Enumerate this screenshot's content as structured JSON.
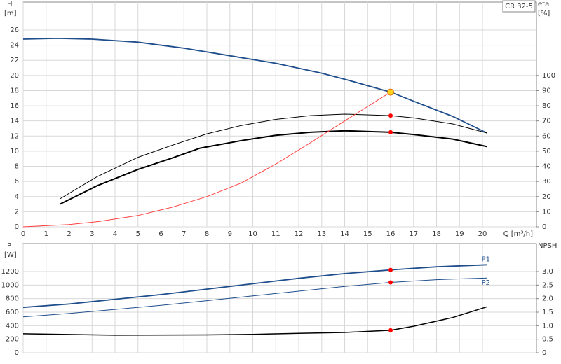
{
  "chart_data": [
    {
      "type": "line",
      "model": "CR 32-5",
      "y_label": "H",
      "y_unit": "[m]",
      "y2_label": "eta",
      "y2_unit": "[%]",
      "x_label": "Q [m³/h]",
      "xlim": [
        0,
        22.35
      ],
      "xticks": [
        0,
        1,
        2,
        3,
        4,
        5,
        6,
        7,
        8,
        9,
        10,
        11,
        12,
        13,
        14,
        15,
        16,
        17,
        18,
        19,
        20
      ],
      "ylim": [
        0,
        29.7
      ],
      "yticks": [
        0,
        2,
        4,
        6,
        8,
        10,
        12,
        14,
        16,
        18,
        20,
        22,
        24,
        26
      ],
      "y2lim": [
        0,
        148.5
      ],
      "y2ticks": [
        0,
        10,
        20,
        30,
        40,
        50,
        60,
        70,
        80,
        90,
        100
      ],
      "grid": true,
      "show_xtick_labels": true,
      "series": [
        {
          "style": "line",
          "color": "#1f4e8c",
          "linewidth": 1.8,
          "x": [
            0,
            1.5,
            3,
            5,
            7,
            9,
            11,
            13,
            14,
            16,
            17,
            18.7,
            20.2
          ],
          "values": [
            24.8,
            24.9,
            24.8,
            24.4,
            23.6,
            22.6,
            21.6,
            20.3,
            19.5,
            17.8,
            16.6,
            14.6,
            12.4
          ]
        },
        {
          "style": "line",
          "color": "#000000",
          "linewidth": 1,
          "axis": "y2",
          "x": [
            1.6,
            3.2,
            5,
            6.5,
            8,
            9.5,
            11,
            12.5,
            14,
            16,
            17,
            18.7,
            20.2
          ],
          "values": [
            18.5,
            33,
            46,
            54,
            61.5,
            67,
            71,
            73.5,
            74.5,
            73.5,
            72,
            68,
            62
          ]
        },
        {
          "style": "line",
          "color": "#000000",
          "linewidth": 2,
          "axis": "y2",
          "x": [
            1.6,
            3.2,
            5,
            6.5,
            7.7,
            9.5,
            11,
            12.5,
            14,
            16,
            17,
            18.7,
            20.2
          ],
          "values": [
            15,
            27,
            38,
            45.5,
            52,
            57,
            60.5,
            62.5,
            63.5,
            62.5,
            61,
            58,
            53
          ]
        },
        {
          "style": "line",
          "color": "#ff4040",
          "linewidth": 1,
          "x": [
            0,
            2,
            3.3,
            5,
            6.5,
            8,
            9.5,
            11,
            12.5,
            14,
            16
          ],
          "values": [
            0,
            0.3,
            0.7,
            1.5,
            2.6,
            4,
            5.8,
            8.3,
            11.1,
            14,
            17.8
          ]
        },
        {
          "style": "point",
          "color": "#ff0000",
          "axis": "y2",
          "x": [
            16,
            16
          ],
          "values": [
            73.5,
            62.5
          ]
        },
        {
          "style": "point",
          "color": "#ffd21f",
          "x": [
            16
          ],
          "values": [
            17.8
          ]
        }
      ]
    },
    {
      "type": "line",
      "y_label": "P",
      "y_unit": "[W]",
      "y2_label": "NPSH",
      "xlim": [
        0,
        22.35
      ],
      "xticks": [
        0,
        1,
        2,
        3,
        4,
        5,
        6,
        7,
        8,
        9,
        10,
        11,
        12,
        13,
        14,
        15,
        16,
        17,
        18,
        19,
        20
      ],
      "ylim": [
        0,
        1614
      ],
      "yticks": [
        0,
        200,
        400,
        600,
        800,
        1000,
        1200
      ],
      "y2lim": [
        0,
        4.035
      ],
      "y2ticks": [
        {
          "value": 0,
          "label": "0"
        },
        0.5,
        {
          "value": 1,
          "label": "1.0"
        },
        1.5,
        {
          "value": 2,
          "label": "2.0"
        },
        2.5,
        {
          "value": 3,
          "label": "3.0"
        }
      ],
      "grid": true,
      "show_xtick_labels": false,
      "series": [
        {
          "style": "line",
          "name": "P1",
          "color": "#1f4e8c",
          "linewidth": 1.8,
          "x": [
            0,
            2,
            4,
            6,
            8,
            10,
            12,
            14,
            16,
            18,
            20.2
          ],
          "values": [
            670,
            720,
            790,
            860,
            940,
            1020,
            1100,
            1170,
            1225,
            1270,
            1300
          ]
        },
        {
          "style": "line",
          "name": "P2",
          "color": "#1f4e8c",
          "linewidth": 1,
          "x": [
            0,
            2,
            4,
            6,
            8,
            10,
            12,
            14,
            16,
            18,
            20.2
          ],
          "values": [
            530,
            580,
            640,
            700,
            770,
            840,
            910,
            980,
            1040,
            1080,
            1105
          ]
        },
        {
          "style": "line",
          "color": "#000000",
          "linewidth": 1.5,
          "axis": "y2",
          "x": [
            0,
            4,
            8,
            10,
            12,
            14,
            16,
            17,
            18.7,
            20.2
          ],
          "values": [
            0.7,
            0.65,
            0.66,
            0.68,
            0.72,
            0.75,
            0.83,
            0.98,
            1.3,
            1.7
          ]
        },
        {
          "style": "point",
          "color": "#ff0000",
          "x": [
            16,
            16
          ],
          "values": [
            1225,
            1040
          ]
        },
        {
          "style": "point",
          "color": "#ff0000",
          "axis": "y2",
          "x": [
            16
          ],
          "values": [
            0.83
          ]
        }
      ]
    }
  ]
}
